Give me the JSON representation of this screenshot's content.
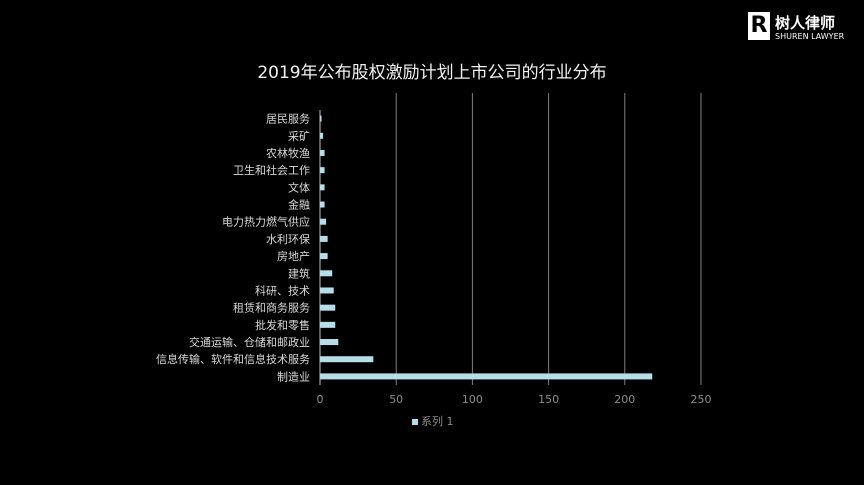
{
  "logo": {
    "cn": "树人律师",
    "en": "SHUREN LAWYER",
    "mark": "R"
  },
  "chart_data": {
    "type": "bar",
    "orientation": "horizontal",
    "title": "2019年公布股权激励计划上市公司的行业分布",
    "categories": [
      "居民服务",
      "采矿",
      "农林牧渔",
      "卫生和社会工作",
      "文体",
      "金融",
      "电力热力燃气供应",
      "水利环保",
      "房地产",
      "建筑",
      "科研、技术",
      "租赁和商务服务",
      "批发和零售",
      "交通运输、仓储和邮政业",
      "信息传输、软件和信息技术服务",
      "制造业"
    ],
    "series": [
      {
        "name": "系列 1",
        "values": [
          1,
          2,
          3,
          3,
          3,
          3,
          4,
          5,
          5,
          8,
          9,
          10,
          10,
          12,
          35,
          218
        ]
      }
    ],
    "xlim": [
      0,
      250
    ],
    "xticks": [
      0,
      50,
      100,
      150,
      200,
      250
    ],
    "grid": true,
    "legend": "bottom",
    "colors": {
      "bar": "#b7dee8",
      "grid": "#808080",
      "background": "#000000"
    }
  }
}
